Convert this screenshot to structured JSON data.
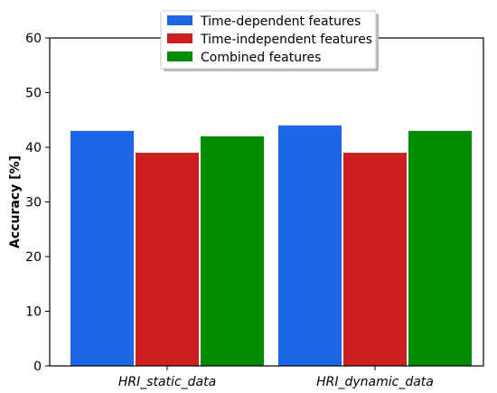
{
  "chart_data": {
    "type": "bar",
    "categories": [
      "HRI_static_data",
      "HRI_dynamic_data"
    ],
    "series": [
      {
        "name": "Time-dependent features",
        "values": [
          43,
          44
        ],
        "color": "#1f66e5"
      },
      {
        "name": "Time-independent features",
        "values": [
          39,
          39
        ],
        "color": "#cc1f1f"
      },
      {
        "name": "Combined features",
        "values": [
          42,
          43
        ],
        "color": "#008c00"
      }
    ],
    "title": "",
    "xlabel": "",
    "ylabel": "Accuracy [%]",
    "ylim": [
      0,
      60
    ],
    "yticks": [
      0,
      10,
      20,
      30,
      40,
      50,
      60
    ],
    "grid": false,
    "legend_position": "top-center"
  }
}
